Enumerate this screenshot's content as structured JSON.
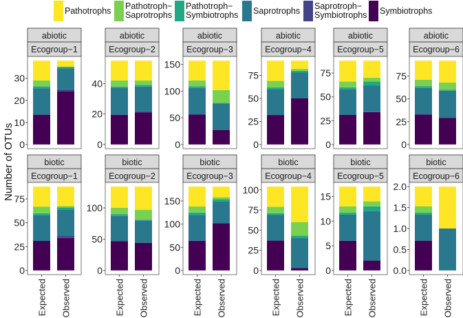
{
  "chart_data": {
    "type": "bar",
    "stacked": true,
    "ylabel": "Number of OTUs",
    "xlabel": "",
    "x_categories": [
      "Expected",
      "Observed"
    ],
    "legend_placement": "top",
    "legend": [
      {
        "name": "Pathotrophs",
        "label": "Pathotrophs",
        "color": "#FDE725"
      },
      {
        "name": "Pathotroph-Saprotrophs",
        "label": "Pathotroph−\nSaprotrophs",
        "color": "#7AD151"
      },
      {
        "name": "Pathotroph-Symbiotrophs",
        "label": "Pathotroph−\nSymbiotrophs",
        "color": "#22A884"
      },
      {
        "name": "Saprotrophs",
        "label": "Saprotrophs",
        "color": "#2A788E"
      },
      {
        "name": "Saprotroph-Symbiotrophs",
        "label": "Saprotroph−\nSymbiotrophs",
        "color": "#414487"
      },
      {
        "name": "Symbiotrophs",
        "label": "Symbiotrophs",
        "color": "#440154"
      }
    ],
    "stack_order_bottom_to_top": [
      "Symbiotrophs",
      "Saprotroph-Symbiotrophs",
      "Saprotrophs",
      "Pathotroph-Symbiotrophs",
      "Pathotroph-Saprotrophs",
      "Pathotrophs"
    ],
    "panels": [
      {
        "strip1": "abiotic",
        "strip2": "Ecogroup−1",
        "ticks": [
          "0",
          "10",
          "20",
          "30"
        ],
        "tick_values": [
          0,
          10,
          20,
          30
        ],
        "total": 38,
        "expected": [
          13.5,
          0,
          12,
          0.8,
          2.7,
          9
        ],
        "observed": [
          24,
          1,
          9.5,
          0.7,
          0,
          2.8
        ]
      },
      {
        "strip1": "abiotic",
        "strip2": "Ecogroup−2",
        "ticks": [
          "0",
          "20",
          "40"
        ],
        "tick_values": [
          0,
          20,
          40
        ],
        "total": 55,
        "expected": [
          19.5,
          0,
          17.5,
          1,
          4,
          13
        ],
        "observed": [
          21,
          0.7,
          16.3,
          1,
          3,
          13
        ]
      },
      {
        "strip1": "abiotic",
        "strip2": "Ecogroup−3",
        "ticks": [
          "0",
          "50",
          "100",
          "150"
        ],
        "tick_values": [
          0,
          50,
          100,
          150
        ],
        "total": 157,
        "expected": [
          56,
          0,
          50,
          3,
          11,
          37
        ],
        "observed": [
          27,
          0,
          50,
          1,
          24,
          55
        ]
      },
      {
        "strip1": "abiotic",
        "strip2": "Ecogroup−4",
        "ticks": [
          "0",
          "25",
          "50",
          "75"
        ],
        "tick_values": [
          0,
          25,
          50,
          75
        ],
        "total": 91,
        "expected": [
          32,
          0,
          28,
          2,
          7,
          22
        ],
        "observed": [
          50,
          0,
          28,
          2,
          2,
          9
        ]
      },
      {
        "strip1": "abiotic",
        "strip2": "Ecogroup−5",
        "ticks": [
          "0",
          "25",
          "50",
          "75"
        ],
        "tick_values": [
          0,
          25,
          50,
          75
        ],
        "total": 88,
        "expected": [
          31,
          0,
          27,
          2,
          6,
          22
        ],
        "observed": [
          34,
          0,
          28,
          4,
          4,
          18
        ]
      },
      {
        "strip1": "abiotic",
        "strip2": "Ecogroup−6",
        "ticks": [
          "0",
          "25",
          "50",
          "75"
        ],
        "tick_values": [
          0,
          25,
          50,
          75
        ],
        "total": 92,
        "expected": [
          33,
          0,
          29,
          2,
          7,
          21
        ],
        "observed": [
          29,
          0,
          30,
          1,
          8,
          24
        ]
      },
      {
        "strip1": "biotic",
        "strip2": "Ecogroup−1",
        "ticks": [
          "0",
          "25",
          "50",
          "75"
        ],
        "tick_values": [
          0,
          25,
          50,
          75
        ],
        "total": 88,
        "expected": [
          31,
          0,
          27,
          2,
          7,
          21
        ],
        "observed": [
          34,
          2.5,
          27.5,
          2,
          1.5,
          20.5
        ]
      },
      {
        "strip1": "biotic",
        "strip2": "Ecogroup−2",
        "ticks": [
          "0",
          "50",
          "100"
        ],
        "tick_values": [
          0,
          50,
          100
        ],
        "total": 134,
        "expected": [
          47,
          0,
          40,
          3,
          10,
          34
        ],
        "observed": [
          44,
          0,
          36,
          1,
          16,
          37
        ]
      },
      {
        "strip1": "biotic",
        "strip2": "Ecogroup−3",
        "ticks": [
          "0",
          "50",
          "100",
          "150"
        ],
        "tick_values": [
          0,
          50,
          100,
          150
        ],
        "total": 181,
        "expected": [
          64,
          0,
          56,
          5,
          13,
          43
        ],
        "observed": [
          102,
          0,
          47,
          5,
          4,
          23
        ]
      },
      {
        "strip1": "biotic",
        "strip2": "Ecogroup−4",
        "ticks": [
          "0",
          "25",
          "50",
          "75",
          "100"
        ],
        "tick_values": [
          0,
          25,
          50,
          75,
          100
        ],
        "total": 104,
        "expected": [
          37,
          0,
          32,
          2,
          8,
          25
        ],
        "observed": [
          3,
          0,
          37,
          3,
          17,
          44
        ]
      },
      {
        "strip1": "biotic",
        "strip2": "Ecogroup−5",
        "ticks": [
          "0",
          "5",
          "10",
          "15"
        ],
        "tick_values": [
          0,
          5,
          10,
          15
        ],
        "total": 17,
        "expected": [
          6,
          0,
          5.3,
          0.4,
          1.3,
          4
        ],
        "observed": [
          2,
          0,
          10,
          1,
          1,
          3
        ]
      },
      {
        "strip1": "biotic",
        "strip2": "Ecogroup−6",
        "ticks": [
          "0.0",
          "0.5",
          "1.0",
          "1.5",
          "2.0"
        ],
        "tick_values": [
          0,
          0.5,
          1,
          1.5,
          2
        ],
        "total": 2,
        "expected": [
          0.71,
          0,
          0.62,
          0.05,
          0.15,
          0.47
        ],
        "observed": [
          0,
          0,
          1,
          0,
          0,
          1
        ]
      }
    ]
  }
}
